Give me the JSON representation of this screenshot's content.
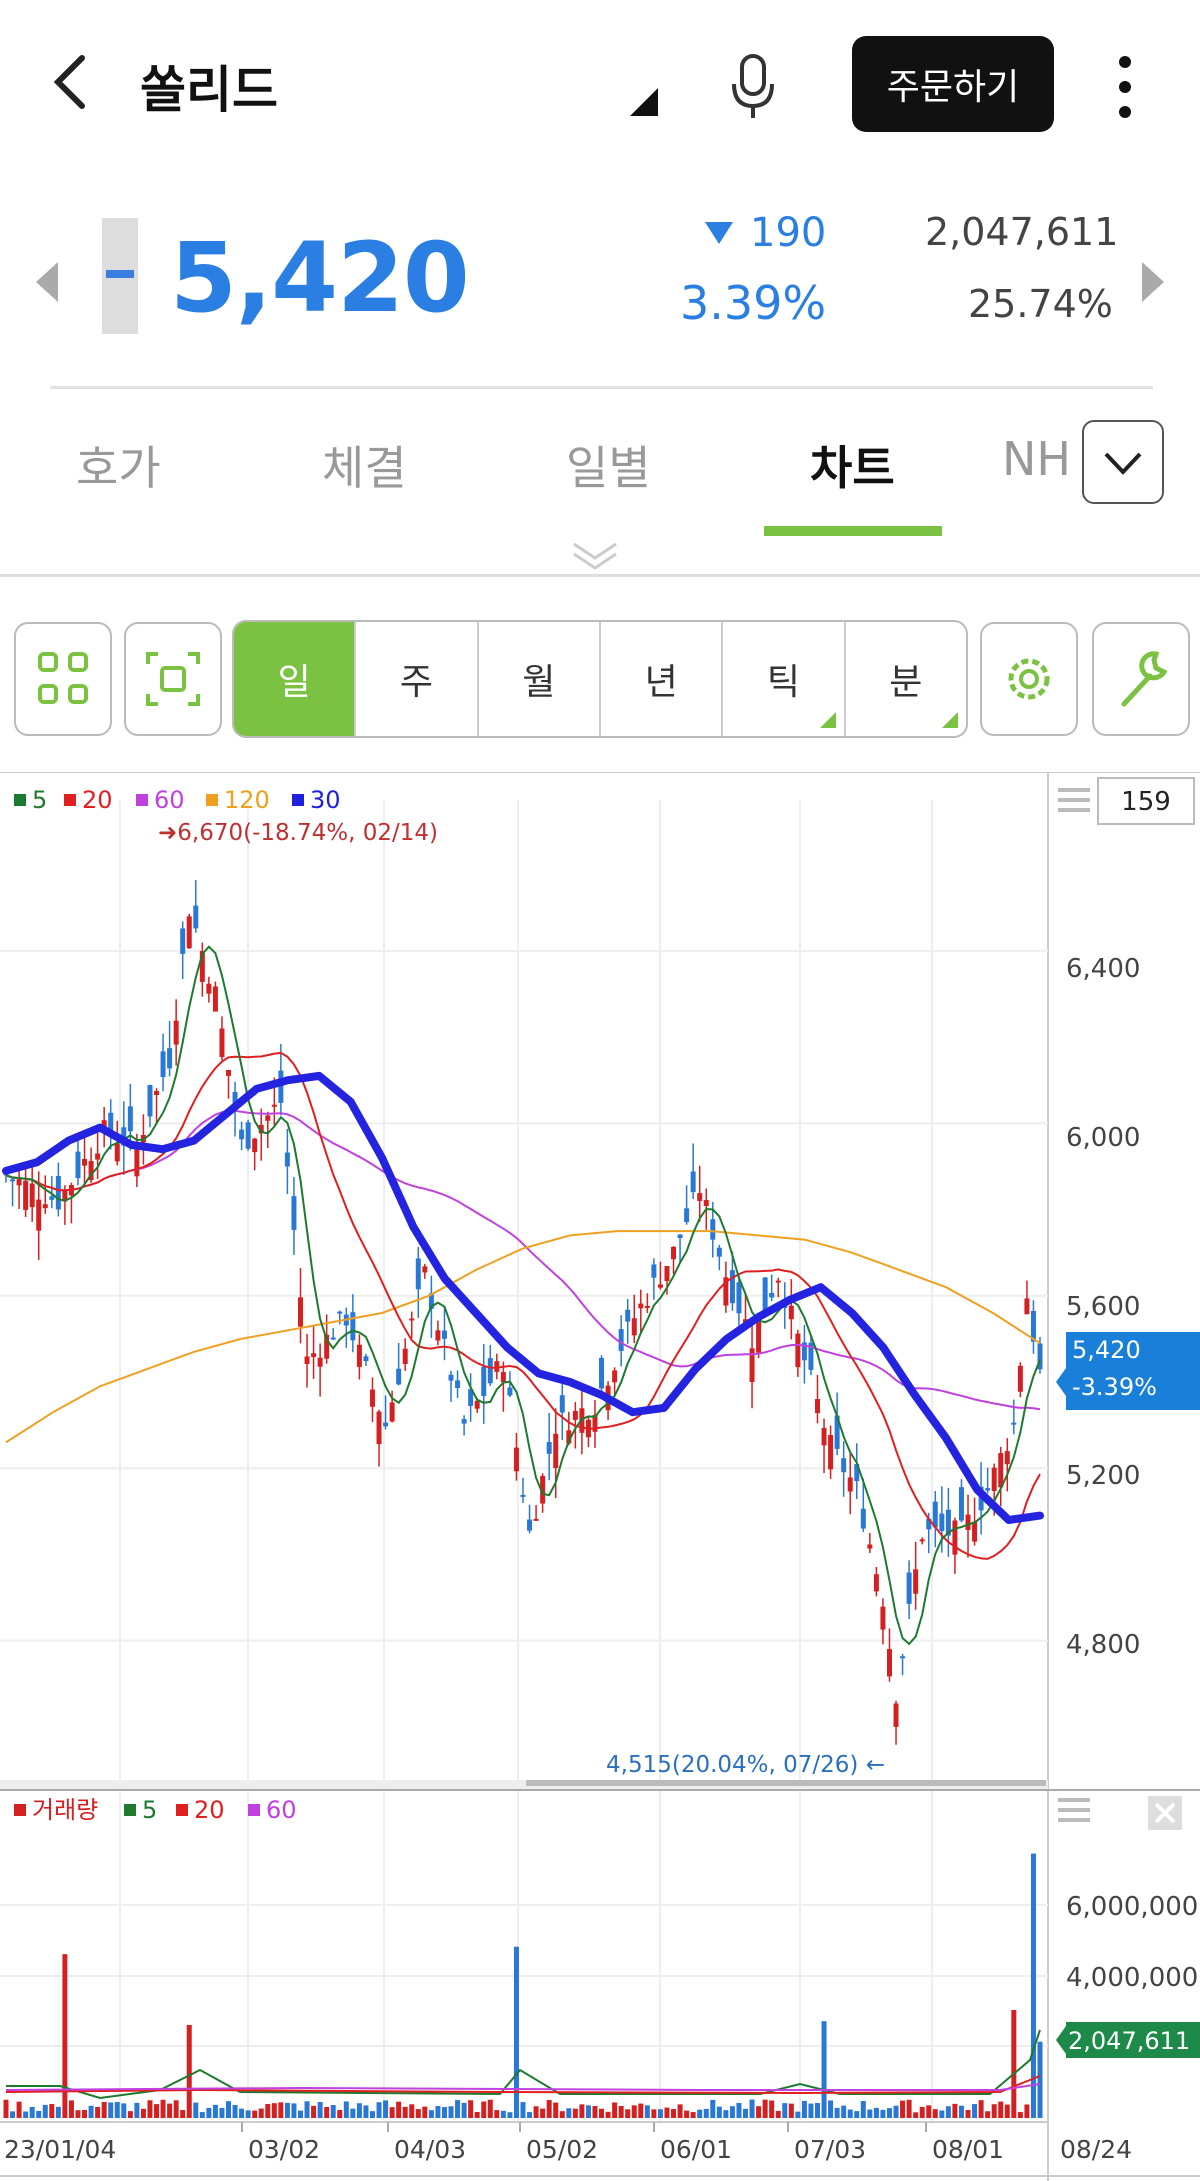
{
  "header": {
    "title": "쏠리드",
    "order_button": "주문하기"
  },
  "quote": {
    "price": "5,420",
    "change": "190",
    "change_percent": "3.39%",
    "volume": "2,047,611",
    "turnover_percent": "25.74%"
  },
  "tabs": [
    {
      "label": "호가"
    },
    {
      "label": "체결"
    },
    {
      "label": "일별"
    },
    {
      "label": "차트",
      "active": true
    },
    {
      "label": "NH"
    }
  ],
  "periods": [
    {
      "label": "일",
      "active": true
    },
    {
      "label": "주"
    },
    {
      "label": "월"
    },
    {
      "label": "년"
    },
    {
      "label": "틱",
      "submenu": true
    },
    {
      "label": "분",
      "submenu": true
    }
  ],
  "colors": {
    "accent": "#7cc242",
    "down": "#2b7fe2",
    "up": "#d42020"
  },
  "icons": [
    "back-icon",
    "mic-icon",
    "kebab-icon",
    "grid-icon",
    "fullscreen-icon",
    "gear-icon",
    "wrench-icon",
    "chevron-down-icon"
  ],
  "chart_data": [
    {
      "type": "candlestick",
      "legend": [
        {
          "name": "5",
          "color": "#1e7a2e"
        },
        {
          "name": "20",
          "color": "#e02020"
        },
        {
          "name": "60",
          "color": "#c040e0"
        },
        {
          "name": "120",
          "color": "#f0a020"
        },
        {
          "name": "30",
          "color": "#2020e0"
        }
      ],
      "count_box": "159",
      "ylim": [
        4500,
        6750
      ],
      "y_ticks": [
        "6,400",
        "6,000",
        "5,600",
        "5,200",
        "4,800"
      ],
      "high_annotation": "6,670(-18.74%, 02/14)",
      "low_annotation": "4,515(20.04%, 07/26)",
      "current_label": {
        "price": "5,420",
        "change": "-3.39%"
      },
      "ma30": [
        5890,
        5910,
        5960,
        5990,
        5950,
        5940,
        5960,
        6020,
        6080,
        6100,
        6110,
        6050,
        5920,
        5760,
        5640,
        5560,
        5480,
        5420,
        5400,
        5370,
        5330,
        5340,
        5430,
        5500,
        5550,
        5590,
        5620,
        5560,
        5480,
        5370,
        5270,
        5150,
        5080,
        5090
      ],
      "ma120": [
        5260,
        5330,
        5390,
        5430,
        5470,
        5500,
        5520,
        5540,
        5560,
        5600,
        5660,
        5710,
        5740,
        5750,
        5750,
        5750,
        5740,
        5730,
        5700,
        5660,
        5620,
        5560,
        5490
      ]
    },
    {
      "type": "bar",
      "legend": [
        {
          "name": "거래량",
          "color": "#d42020"
        },
        {
          "name": "5",
          "color": "#1e7a2e"
        },
        {
          "name": "20",
          "color": "#e02020"
        },
        {
          "name": "60",
          "color": "#c040e0"
        }
      ],
      "y_ticks": [
        "6,000,000",
        "4,000,000"
      ],
      "current_label": "2,047,611",
      "x_ticks": [
        "23/01/04",
        "03/02",
        "04/03",
        "05/02",
        "06/01",
        "07/03",
        "08/01",
        "08/24"
      ],
      "spikes": [
        {
          "x": "01/09",
          "value": 4400000
        },
        {
          "x": "02/08",
          "value": 2500000
        },
        {
          "x": "04/24",
          "value": 4600000
        },
        {
          "x": "07/04",
          "value": 2600000
        },
        {
          "x": "08/18",
          "value": 2900000
        },
        {
          "x": "08/23",
          "value": 7100000
        },
        {
          "x": "08/24",
          "value": 2047611
        }
      ]
    }
  ]
}
